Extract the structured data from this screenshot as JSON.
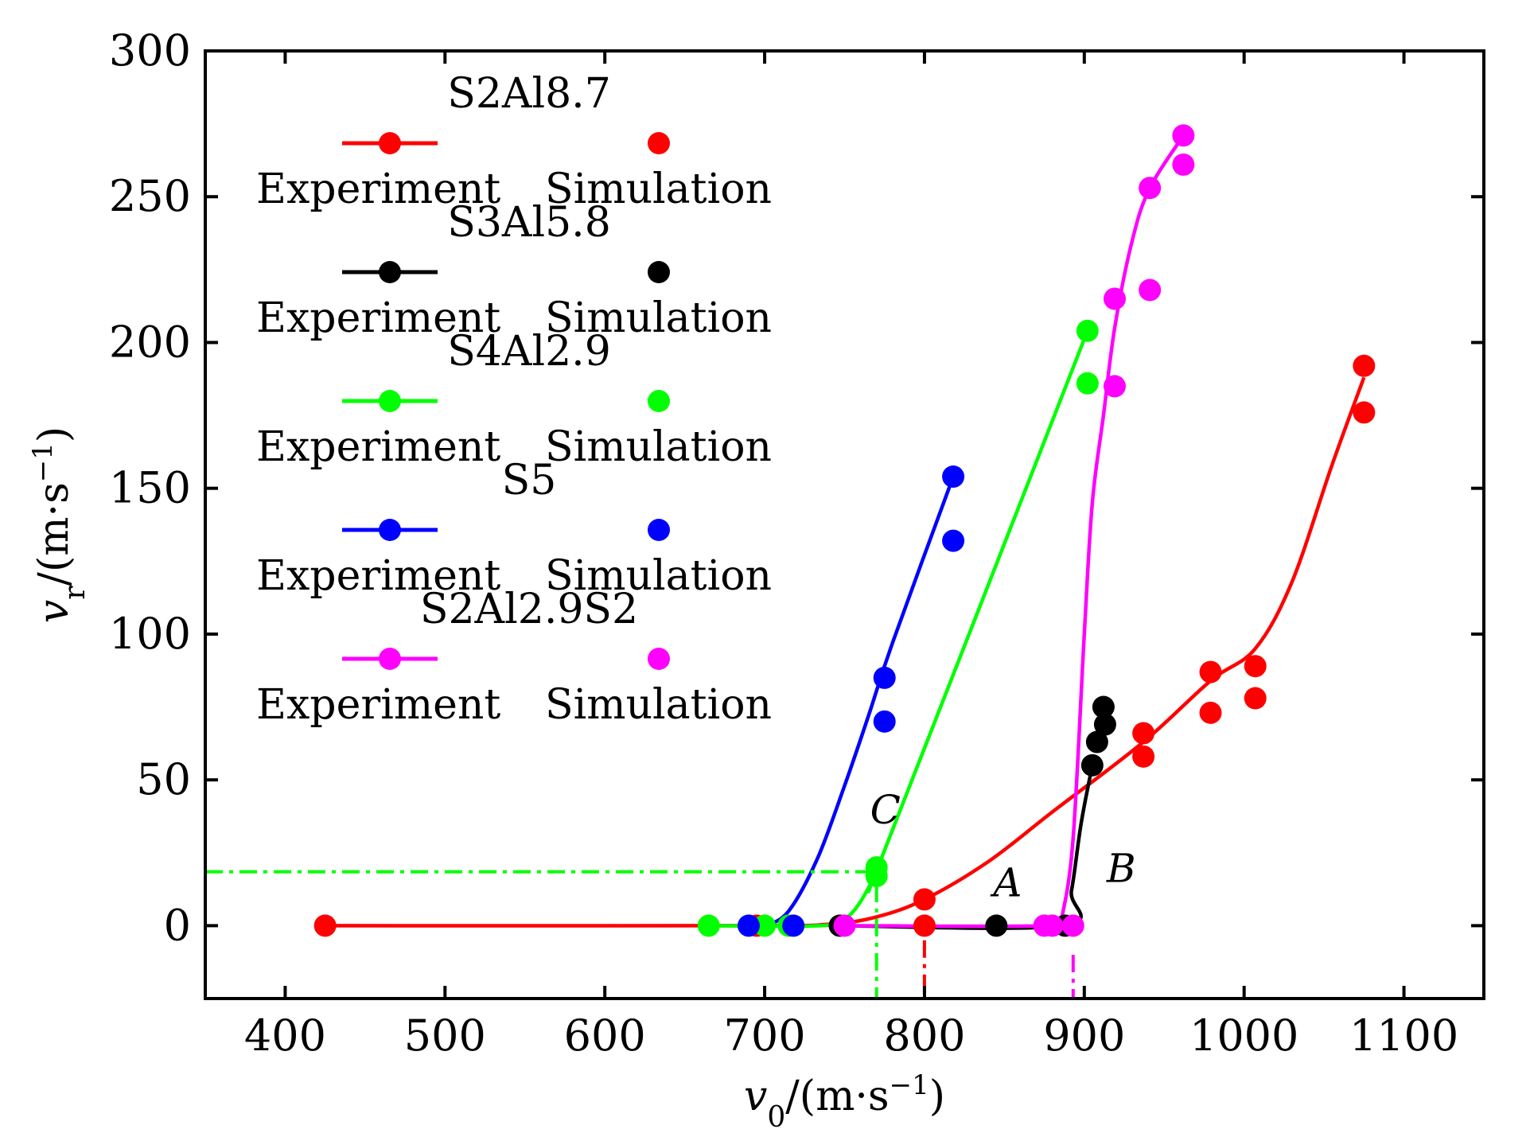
{
  "chart_data": {
    "type": "line",
    "xlabel": {
      "var": "v",
      "sub": "0",
      "unit": "/(m·s",
      "sup": "−1",
      "close": ")"
    },
    "ylabel": {
      "var": "v",
      "sub": "r",
      "unit": "/(m·s",
      "sup": "−1",
      "close": ")"
    },
    "xlim": [
      350,
      1150
    ],
    "ylim": [
      -25,
      300
    ],
    "xticks": [
      400,
      500,
      600,
      700,
      800,
      900,
      1000,
      1100
    ],
    "yticks": [
      0,
      50,
      100,
      150,
      200,
      250,
      300
    ],
    "grid": false,
    "legend_position": "top-left",
    "legend_columns": [
      "Experiment",
      "Simulation"
    ],
    "series": [
      {
        "name": "S2Al8.7",
        "color": "#ff0000",
        "experiment": [
          [
            425,
            0
          ],
          [
            695,
            0
          ],
          [
            800,
            9
          ],
          [
            937,
            66
          ],
          [
            979,
            87
          ],
          [
            1007,
            89
          ],
          [
            1075,
            192
          ]
        ],
        "simulation": [
          [
            800,
            0
          ],
          [
            937,
            58
          ],
          [
            979,
            73
          ],
          [
            1007,
            78
          ],
          [
            1075,
            176
          ]
        ],
        "curve": [
          [
            425,
            0
          ],
          [
            690,
            0
          ],
          [
            740,
            0.5
          ],
          [
            770,
            3
          ],
          [
            800,
            9
          ],
          [
            840,
            22
          ],
          [
            880,
            39
          ],
          [
            937,
            63
          ],
          [
            979,
            84
          ],
          [
            1007,
            95
          ],
          [
            1030,
            118
          ],
          [
            1055,
            158
          ],
          [
            1075,
            188
          ]
        ]
      },
      {
        "name": "S3Al5.8",
        "color": "#000000",
        "experiment": [
          [
            747,
            0
          ],
          [
            888,
            0
          ],
          [
            905,
            55
          ],
          [
            908,
            63
          ],
          [
            912,
            75
          ]
        ],
        "simulation": [
          [
            845,
            0
          ],
          [
            913,
            69
          ]
        ],
        "curve": [
          [
            747,
            0
          ],
          [
            886,
            0
          ],
          [
            892,
            12
          ],
          [
            898,
            35
          ],
          [
            905,
            55
          ]
        ]
      },
      {
        "name": "S4Al2.9",
        "color": "#00ff00",
        "experiment": [
          [
            665,
            0
          ],
          [
            700,
            0
          ],
          [
            770,
            20
          ],
          [
            902,
            204
          ]
        ],
        "simulation": [
          [
            715,
            0
          ],
          [
            770,
            17
          ],
          [
            902,
            186
          ]
        ],
        "curve": [
          [
            665,
            0
          ],
          [
            735,
            0
          ],
          [
            752,
            3
          ],
          [
            766,
            14
          ],
          [
            778,
            30
          ],
          [
            902,
            204
          ]
        ]
      },
      {
        "name": "S5",
        "color": "#0000ff",
        "experiment": [
          [
            690,
            0
          ],
          [
            775,
            85
          ],
          [
            818,
            154
          ]
        ],
        "simulation": [
          [
            718,
            0
          ],
          [
            775,
            70
          ],
          [
            818,
            132
          ]
        ],
        "curve": [
          [
            690,
            0
          ],
          [
            700,
            0
          ],
          [
            715,
            5
          ],
          [
            733,
            23
          ],
          [
            750,
            48
          ],
          [
            765,
            72
          ],
          [
            780,
            97
          ],
          [
            818,
            154
          ]
        ]
      },
      {
        "name": "S2Al2.9S2",
        "color": "#ff00ff",
        "experiment": [
          [
            750,
            0
          ],
          [
            875,
            0
          ],
          [
            893,
            0
          ],
          [
            919,
            185
          ],
          [
            941,
            253
          ],
          [
            962,
            271
          ]
        ],
        "simulation": [
          [
            880,
            0
          ],
          [
            919,
            215
          ],
          [
            941,
            218
          ],
          [
            962,
            261
          ]
        ],
        "curve": [
          [
            750,
            0
          ],
          [
            882,
            0
          ],
          [
            886,
            3
          ],
          [
            893,
            30
          ],
          [
            900,
            100
          ],
          [
            905,
            145
          ],
          [
            912,
            175
          ],
          [
            919,
            205
          ],
          [
            930,
            235
          ],
          [
            941,
            253
          ],
          [
            962,
            271
          ]
        ]
      }
    ],
    "reference_lines": [
      {
        "color": "#00ff00",
        "points": [
          [
            350,
            18.5
          ],
          [
            770,
            18.5
          ],
          [
            770,
            -25
          ]
        ]
      },
      {
        "color": "#ff0000",
        "points": [
          [
            800,
            -5
          ],
          [
            800,
            -25
          ]
        ]
      },
      {
        "color": "#ff00ff",
        "points": [
          [
            893,
            -10
          ],
          [
            893,
            -25
          ]
        ]
      }
    ],
    "annotations": [
      {
        "text": "C",
        "x": 766,
        "y": 35
      },
      {
        "text": "A",
        "x": 843,
        "y": 10
      },
      {
        "text": "B",
        "x": 914,
        "y": 15
      }
    ]
  }
}
